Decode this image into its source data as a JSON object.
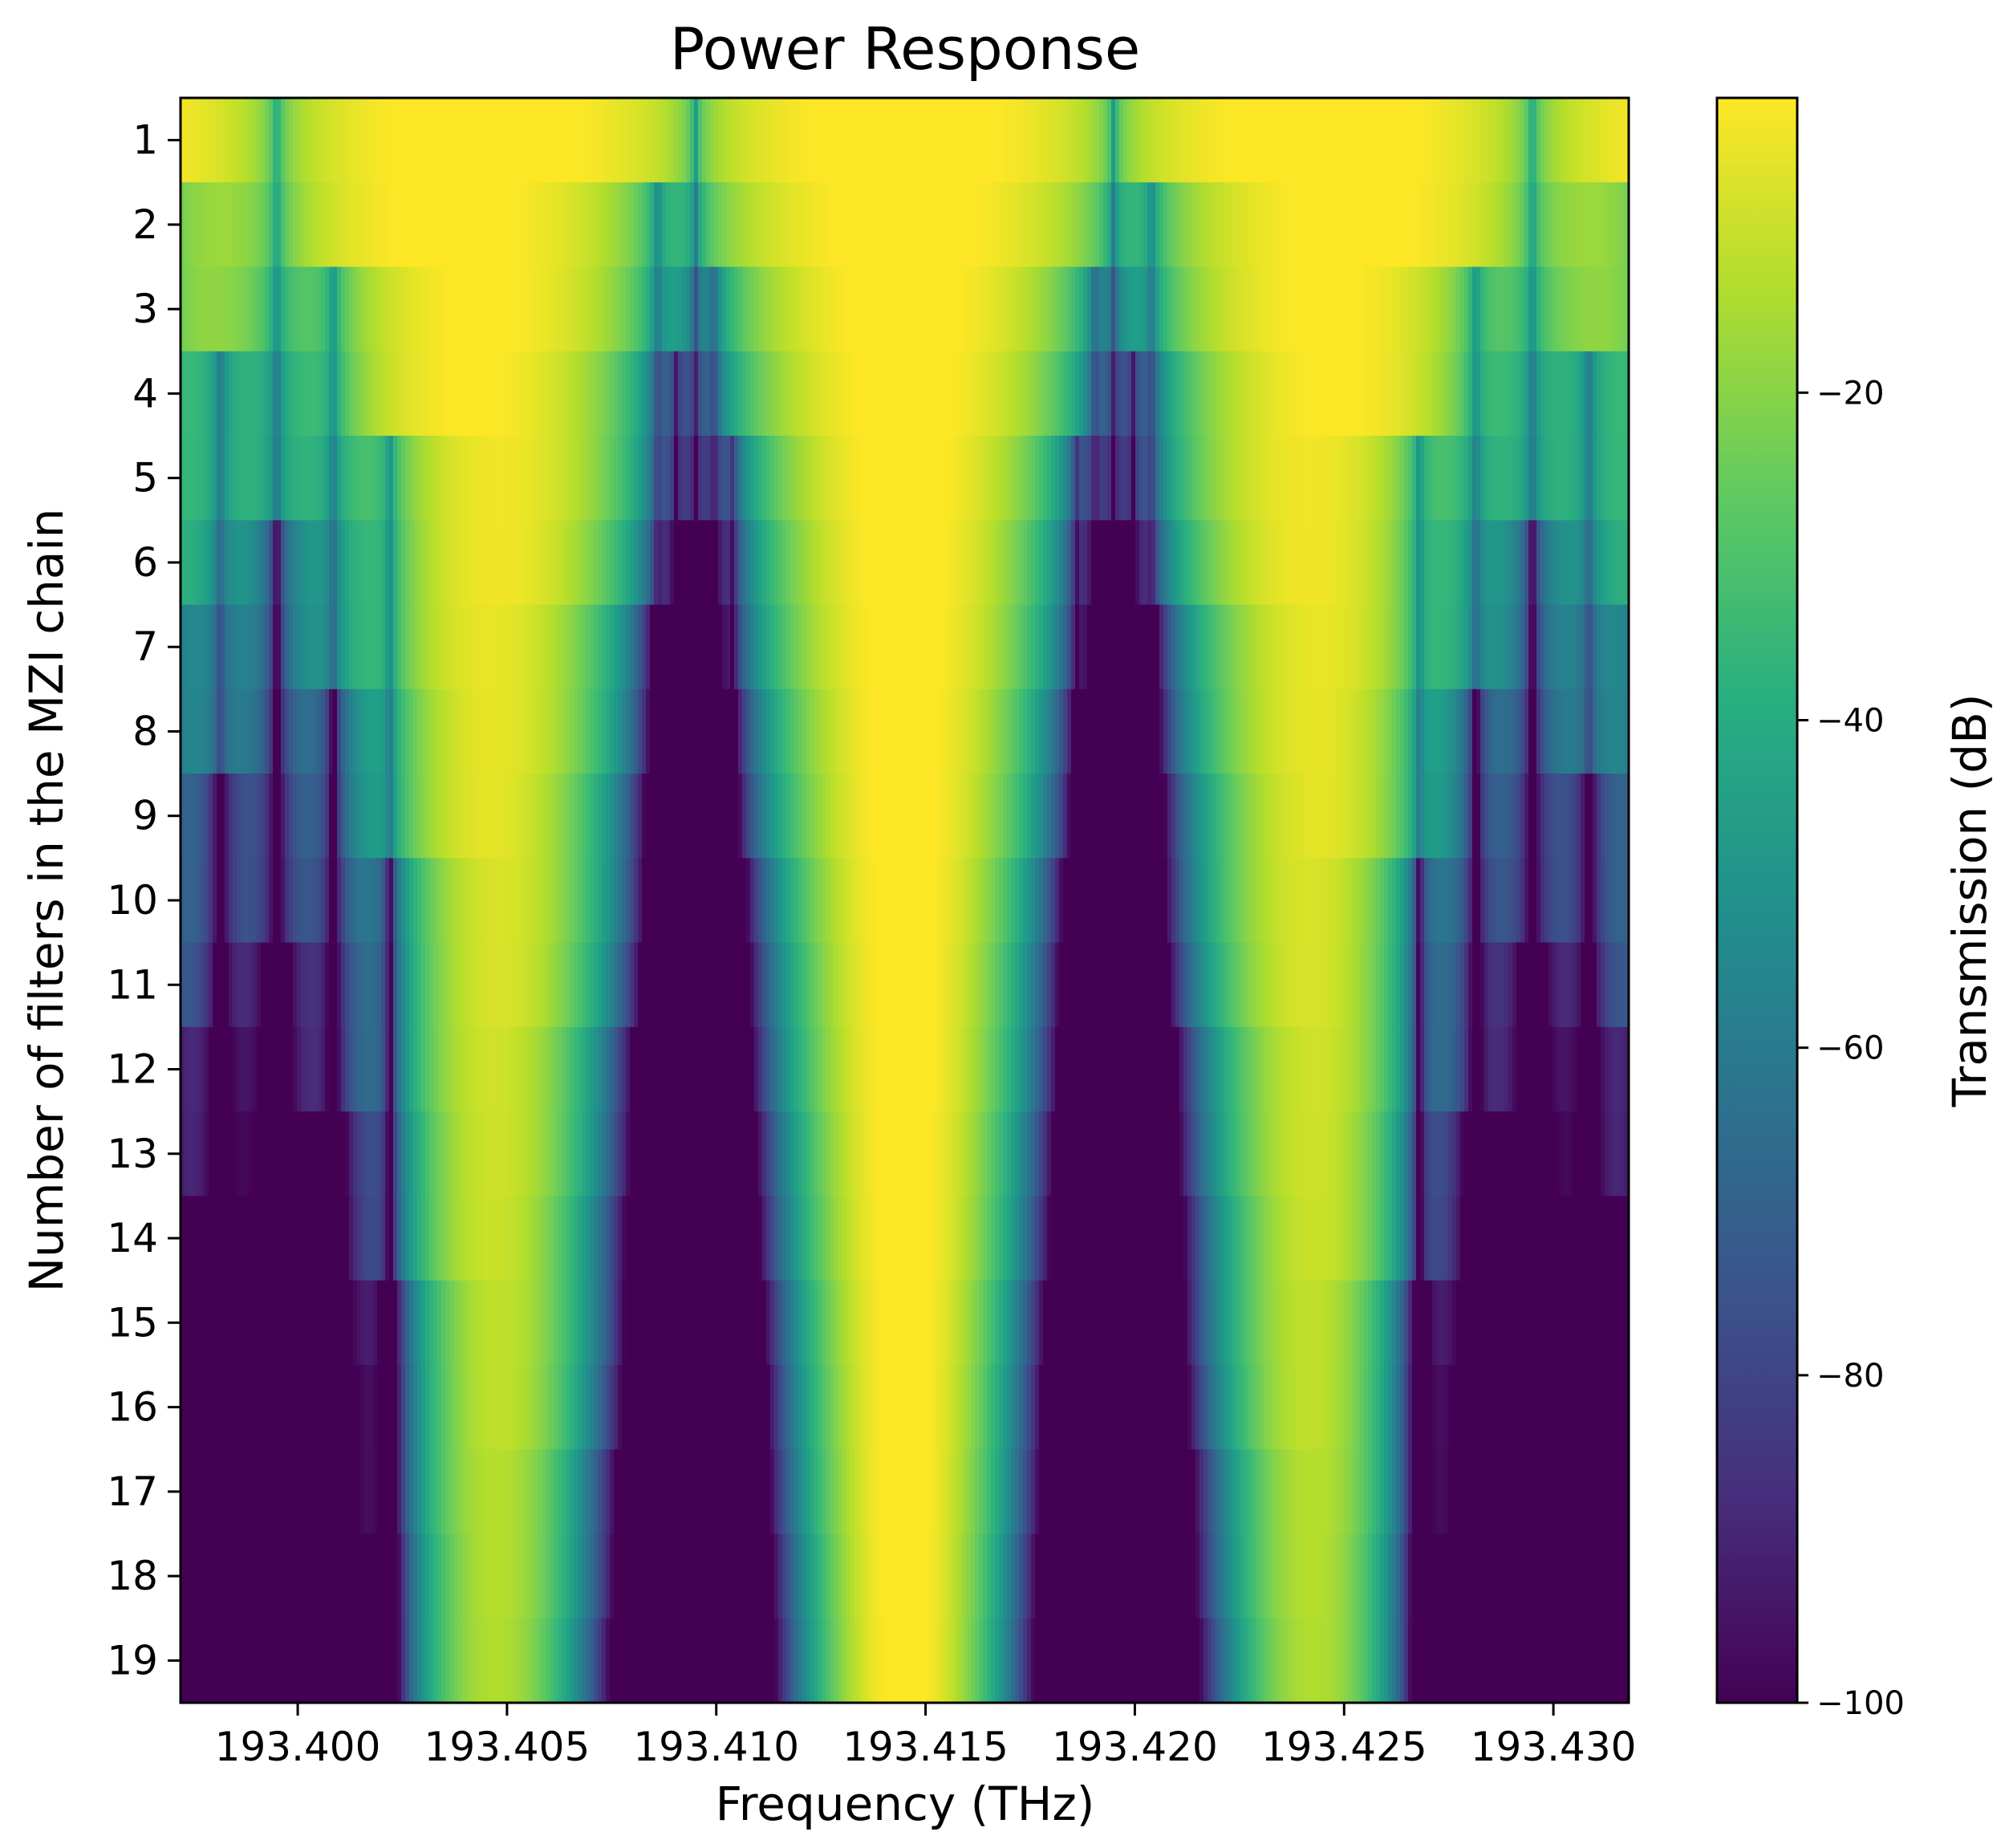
{
  "chart_data": {
    "type": "heatmap",
    "title": "Power Response",
    "xlabel": "Frequency (THz)",
    "ylabel": "Number of filters in the MZI chain",
    "xlim": [
      193.3972,
      193.4318
    ],
    "x_ticks": [
      193.4,
      193.405,
      193.41,
      193.415,
      193.42,
      193.425,
      193.43
    ],
    "x_tick_labels": [
      "193.400",
      "193.405",
      "193.410",
      "193.415",
      "193.420",
      "193.425",
      "193.430"
    ],
    "rows": [
      1,
      2,
      3,
      4,
      5,
      6,
      7,
      8,
      9,
      10,
      11,
      12,
      13,
      14,
      15,
      16,
      17,
      18,
      19
    ],
    "y_tick_labels": [
      "1",
      "2",
      "3",
      "4",
      "5",
      "6",
      "7",
      "8",
      "9",
      "10",
      "11",
      "12",
      "13",
      "14",
      "15",
      "16",
      "17",
      "18",
      "19"
    ],
    "center_frequency": 193.4145,
    "colormap": "viridis",
    "colorbar": {
      "label": "Transmission (dB)",
      "range": [
        -100,
        -2
      ],
      "ticks": [
        -20,
        -40,
        -60,
        -80,
        -100
      ],
      "tick_labels": [
        "−20",
        "−40",
        "−60",
        "−80",
        "−100"
      ]
    },
    "grid": false
  }
}
